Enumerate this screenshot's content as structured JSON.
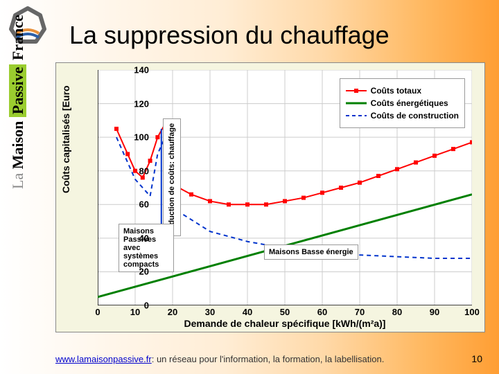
{
  "title": "La suppression du chauffage",
  "sidebar": {
    "la": "La",
    "maison": "Maison",
    "passive": "Passive",
    "france": "France"
  },
  "chart": {
    "type": "line",
    "background_color": "#f5f5e0",
    "plot_background": "#ffffff",
    "grid_color": "#cccccc",
    "xlim": [
      0,
      100
    ],
    "ylim": [
      0,
      140
    ],
    "xtick_step": 10,
    "ytick_step": 20,
    "xlabel": "Demande de chaleur spécifique [kWh/(m²a)]",
    "ylabel": "Coûts capitalisés [Euro",
    "series": {
      "total": {
        "label": "Coûts totaux",
        "color": "#ff0000",
        "style": "line-marker",
        "marker": "square",
        "line_width": 2,
        "data": [
          [
            5,
            105
          ],
          [
            8,
            90
          ],
          [
            10,
            80
          ],
          [
            12,
            76
          ],
          [
            14,
            86
          ],
          [
            16,
            100
          ],
          [
            18,
            108
          ],
          [
            20,
            72
          ],
          [
            25,
            66
          ],
          [
            30,
            62
          ],
          [
            35,
            60
          ],
          [
            40,
            60
          ],
          [
            45,
            60
          ],
          [
            50,
            62
          ],
          [
            55,
            64
          ],
          [
            60,
            67
          ],
          [
            65,
            70
          ],
          [
            70,
            73
          ],
          [
            75,
            77
          ],
          [
            80,
            81
          ],
          [
            85,
            85
          ],
          [
            90,
            89
          ],
          [
            95,
            93
          ],
          [
            100,
            97
          ]
        ]
      },
      "energy": {
        "label": "Coûts énergétiques",
        "color": "#008000",
        "style": "line",
        "line_width": 3,
        "data": [
          [
            0,
            5
          ],
          [
            100,
            66
          ]
        ]
      },
      "construction": {
        "label": "Coûts de construction",
        "color": "#0033cc",
        "style": "dashed",
        "line_width": 2,
        "data": [
          [
            5,
            100
          ],
          [
            10,
            75
          ],
          [
            14,
            65
          ],
          [
            16,
            90
          ],
          [
            18,
            100
          ],
          [
            20,
            58
          ],
          [
            30,
            44
          ],
          [
            40,
            38
          ],
          [
            50,
            34
          ],
          [
            60,
            32
          ],
          [
            70,
            30
          ],
          [
            80,
            29
          ],
          [
            90,
            28
          ],
          [
            100,
            28
          ]
        ]
      }
    }
  },
  "legend": {
    "total": "Coûts totaux",
    "energy": "Coûts énergétiques",
    "construction": "Coûts de construction"
  },
  "annotations": {
    "passive": "Maisons Passives avec systèmes compacts",
    "reduction": "réduction de coûts: chauffage",
    "basse": "Maisons Basse énergie"
  },
  "footer": {
    "link_text": "www.lamaisonpassive.fr",
    "rest": ": un réseau pour l'information, la formation, la labellisation."
  },
  "slide_number": "10",
  "logo_colors": {
    "gray": "#888888",
    "orange": "#e8903a",
    "blue": "#2b5fa8"
  }
}
